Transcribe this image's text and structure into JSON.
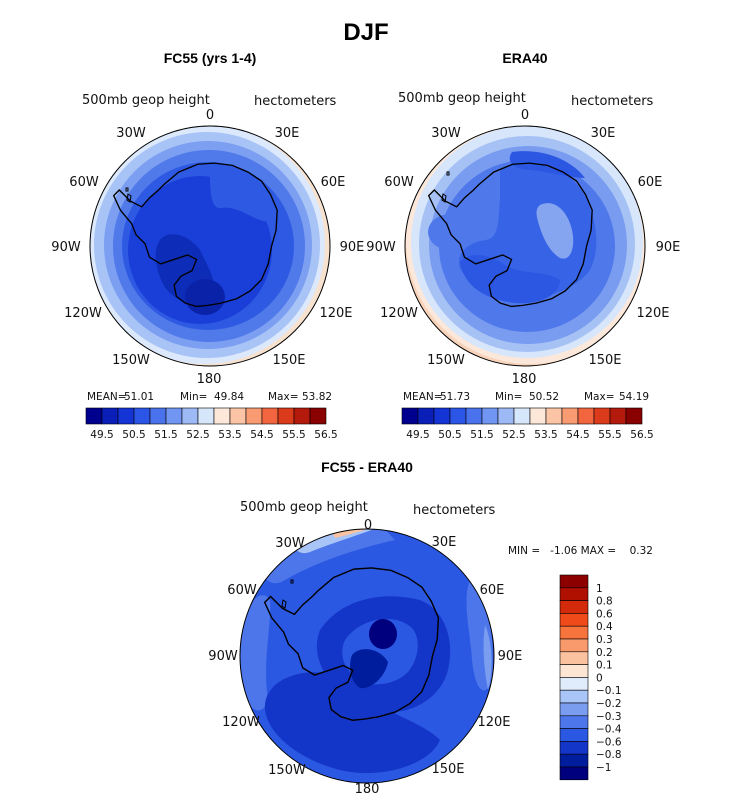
{
  "main_title": "DJF",
  "palette": [
    "#00008f",
    "#0a1fb8",
    "#1434d6",
    "#2a55e6",
    "#4a72ec",
    "#7095f2",
    "#9dbaf6",
    "#d6e6fb",
    "#fde7d8",
    "#fbc4a5",
    "#f89a72",
    "#f2653f",
    "#dc3b1b",
    "#b41a0b",
    "#880000"
  ],
  "charts": [
    {
      "title": "FC55 (yrs 1-4)",
      "variable": "500mb geop height",
      "units": "hectometers",
      "stats": {
        "mean_label": "MEAN=",
        "mean": "51.01",
        "min_label": "Min=",
        "min": "49.84",
        "max_label": "Max=",
        "max": "53.82"
      },
      "colorbar_ticks": [
        "49.5",
        "50.5",
        "51.5",
        "52.5",
        "53.5",
        "54.5",
        "55.5",
        "56.5"
      ]
    },
    {
      "title": "ERA40",
      "variable": "500mb geop height",
      "units": "hectometers",
      "stats": {
        "mean_label": "MEAN=",
        "mean": "51.73",
        "min_label": "Min=",
        "min": "50.52",
        "max_label": "Max=",
        "max": "54.19"
      },
      "colorbar_ticks": [
        "49.5",
        "50.5",
        "51.5",
        "52.5",
        "53.5",
        "54.5",
        "55.5",
        "56.5"
      ]
    },
    {
      "title": "FC55 - ERA40",
      "variable": "500mb geop height",
      "units": "hectometers",
      "minmax_text": "MIN =   -1.06 MAX =    0.32",
      "colorbar_ticks": [
        "1",
        "0.8",
        "0.6",
        "0.4",
        "0.3",
        "0.2",
        "0.1",
        "0",
        "−0.1",
        "−0.2",
        "−0.3",
        "−0.4",
        "−0.6",
        "−0.8",
        "−1"
      ],
      "colorbar_colors": [
        "#8c0000",
        "#b01000",
        "#d22a0a",
        "#ef4a1a",
        "#f7743d",
        "#f99a6c",
        "#fbc2a0",
        "#fde5d3",
        "#e0ecfb",
        "#a9c4f6",
        "#7a9df0",
        "#4c76ea",
        "#2b58e2",
        "#1436c8",
        "#001d9e",
        "#00007e"
      ]
    }
  ],
  "chart_data": [
    {
      "type": "heatmap",
      "title": "FC55 (yrs 1-4)",
      "projection": "south polar stereographic",
      "variable": "500mb geop height",
      "units": "hectometers",
      "longitude_labels": [
        "0",
        "30E",
        "60E",
        "90E",
        "120E",
        "150E",
        "180",
        "150W",
        "120W",
        "90W",
        "60W",
        "30W"
      ],
      "stats": {
        "mean": 51.01,
        "min": 49.84,
        "max": 53.82
      },
      "levels": [
        49.5,
        50.5,
        51.5,
        52.5,
        53.5,
        54.5,
        55.5,
        56.5
      ]
    },
    {
      "type": "heatmap",
      "title": "ERA40",
      "projection": "south polar stereographic",
      "variable": "500mb geop height",
      "units": "hectometers",
      "longitude_labels": [
        "0",
        "30E",
        "60E",
        "90E",
        "120E",
        "150E",
        "180",
        "150W",
        "120W",
        "90W",
        "60W",
        "30W"
      ],
      "stats": {
        "mean": 51.73,
        "min": 50.52,
        "max": 54.19
      },
      "levels": [
        49.5,
        50.5,
        51.5,
        52.5,
        53.5,
        54.5,
        55.5,
        56.5
      ]
    },
    {
      "type": "heatmap",
      "title": "FC55 - ERA40",
      "projection": "south polar stereographic",
      "variable": "500mb geop height",
      "units": "hectometers",
      "longitude_labels": [
        "0",
        "30E",
        "60E",
        "90E",
        "120E",
        "150E",
        "180",
        "150W",
        "120W",
        "90W",
        "60W",
        "30W"
      ],
      "stats": {
        "min": -1.06,
        "max": 0.32
      },
      "levels": [
        1,
        0.8,
        0.6,
        0.4,
        0.3,
        0.2,
        0.1,
        0,
        -0.1,
        -0.2,
        -0.3,
        -0.4,
        -0.6,
        -0.8,
        -1
      ]
    }
  ]
}
